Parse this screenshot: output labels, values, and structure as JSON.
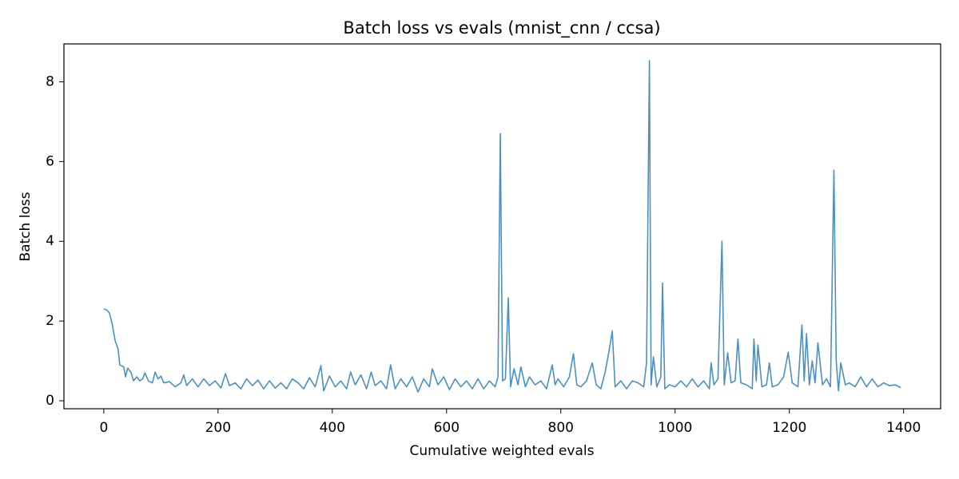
{
  "chart_data": {
    "type": "line",
    "title": "Batch loss vs evals (mnist_cnn / ccsa)",
    "xlabel": "Cumulative weighted evals",
    "ylabel": "Batch loss",
    "color": "#4a90c2",
    "x": [
      0,
      5,
      10,
      15,
      20,
      25,
      28,
      35,
      38,
      42,
      48,
      52,
      58,
      63,
      68,
      72,
      78,
      85,
      90,
      95,
      100,
      105,
      115,
      125,
      135,
      140,
      145,
      155,
      165,
      175,
      185,
      195,
      205,
      213,
      220,
      230,
      240,
      250,
      260,
      270,
      280,
      290,
      300,
      310,
      320,
      330,
      340,
      350,
      360,
      370,
      380,
      385,
      395,
      405,
      415,
      425,
      432,
      440,
      450,
      460,
      468,
      475,
      485,
      495,
      502,
      510,
      520,
      530,
      540,
      550,
      560,
      570,
      575,
      585,
      595,
      605,
      615,
      625,
      635,
      645,
      655,
      665,
      675,
      685,
      690,
      694,
      698,
      703,
      708,
      712,
      718,
      725,
      730,
      738,
      745,
      755,
      765,
      775,
      785,
      790,
      795,
      805,
      815,
      822,
      828,
      835,
      845,
      855,
      862,
      870,
      878,
      885,
      890,
      895,
      905,
      915,
      925,
      935,
      945,
      950,
      955,
      958,
      962,
      968,
      975,
      978,
      982,
      990,
      1000,
      1010,
      1020,
      1030,
      1040,
      1050,
      1060,
      1063,
      1068,
      1075,
      1082,
      1086,
      1092,
      1098,
      1105,
      1110,
      1115,
      1125,
      1135,
      1138,
      1142,
      1145,
      1152,
      1160,
      1165,
      1170,
      1180,
      1190,
      1198,
      1205,
      1215,
      1222,
      1226,
      1230,
      1235,
      1240,
      1245,
      1250,
      1258,
      1265,
      1272,
      1278,
      1282,
      1286,
      1290,
      1298,
      1305,
      1315,
      1325,
      1335,
      1345,
      1355,
      1365,
      1375,
      1385,
      1395
    ],
    "values": [
      2.3,
      2.28,
      2.2,
      1.9,
      1.5,
      1.3,
      0.9,
      0.85,
      0.6,
      0.82,
      0.7,
      0.5,
      0.6,
      0.5,
      0.55,
      0.7,
      0.5,
      0.45,
      0.72,
      0.55,
      0.62,
      0.45,
      0.48,
      0.35,
      0.45,
      0.65,
      0.38,
      0.55,
      0.35,
      0.55,
      0.38,
      0.5,
      0.32,
      0.68,
      0.38,
      0.45,
      0.3,
      0.55,
      0.38,
      0.52,
      0.3,
      0.5,
      0.32,
      0.45,
      0.3,
      0.55,
      0.45,
      0.3,
      0.58,
      0.35,
      0.88,
      0.25,
      0.62,
      0.35,
      0.5,
      0.3,
      0.72,
      0.4,
      0.65,
      0.3,
      0.72,
      0.38,
      0.5,
      0.3,
      0.9,
      0.3,
      0.55,
      0.35,
      0.6,
      0.22,
      0.55,
      0.35,
      0.8,
      0.4,
      0.6,
      0.28,
      0.55,
      0.35,
      0.5,
      0.3,
      0.55,
      0.3,
      0.5,
      0.35,
      0.6,
      6.7,
      0.5,
      0.55,
      2.58,
      0.35,
      0.8,
      0.4,
      0.85,
      0.35,
      0.6,
      0.4,
      0.5,
      0.3,
      0.9,
      0.4,
      0.55,
      0.35,
      0.6,
      1.18,
      0.4,
      0.35,
      0.5,
      0.95,
      0.4,
      0.3,
      0.75,
      1.3,
      1.75,
      0.35,
      0.5,
      0.3,
      0.5,
      0.45,
      0.35,
      0.95,
      8.53,
      0.4,
      1.1,
      0.35,
      0.6,
      2.95,
      0.3,
      0.4,
      0.35,
      0.5,
      0.35,
      0.55,
      0.35,
      0.5,
      0.3,
      0.95,
      0.4,
      0.55,
      4.0,
      0.4,
      1.2,
      0.45,
      0.5,
      1.55,
      0.45,
      0.4,
      0.3,
      1.55,
      0.5,
      1.4,
      0.35,
      0.4,
      0.95,
      0.35,
      0.4,
      0.6,
      1.22,
      0.45,
      0.35,
      1.9,
      0.5,
      1.68,
      0.4,
      1.0,
      0.45,
      1.45,
      0.4,
      0.55,
      0.35,
      5.78,
      1.0,
      0.25,
      0.95,
      0.4,
      0.45,
      0.35,
      0.6,
      0.35,
      0.55,
      0.35,
      0.45,
      0.38,
      0.4,
      0.33
    ],
    "xlim": [
      -69.75,
      1464.75
    ],
    "ylim": [
      -0.2,
      8.95
    ],
    "xticks": [
      0,
      200,
      400,
      600,
      800,
      1000,
      1200,
      1400
    ],
    "yticks": [
      0,
      2,
      4,
      6,
      8
    ]
  }
}
